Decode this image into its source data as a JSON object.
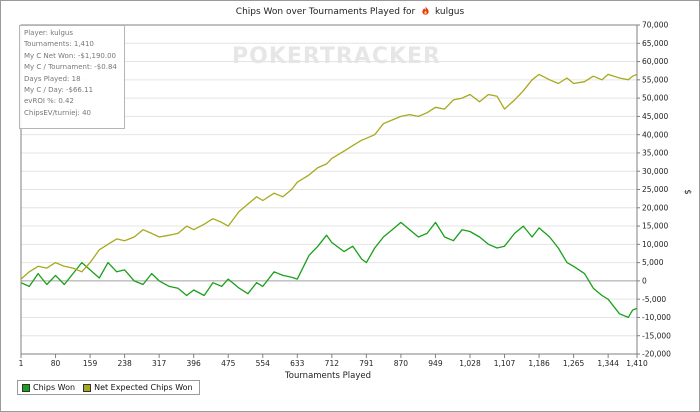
{
  "chart_data": {
    "type": "line",
    "title": "Chips Won over Tournaments Played for",
    "player_name": "kulgus",
    "xlabel": "Tournaments Played",
    "ylabel": "$",
    "xlim": [
      1,
      1410
    ],
    "ylim": [
      -20000,
      70000
    ],
    "x_ticks": [
      "1",
      "80",
      "159",
      "238",
      "317",
      "396",
      "475",
      "554",
      "633",
      "712",
      "791",
      "870",
      "949",
      "1,028",
      "1,107",
      "1,186",
      "1,265",
      "1,344",
      "1,410"
    ],
    "x_tick_values": [
      1,
      80,
      159,
      238,
      317,
      396,
      475,
      554,
      633,
      712,
      791,
      870,
      949,
      1028,
      1107,
      1186,
      1265,
      1344,
      1410
    ],
    "y_ticks": [
      "70,000",
      "65,000",
      "60,000",
      "55,000",
      "50,000",
      "45,000",
      "40,000",
      "35,000",
      "30,000",
      "25,000",
      "20,000",
      "15,000",
      "10,000",
      "5,000",
      "0",
      "-5,000",
      "-10,000",
      "-15,000",
      "-20,000"
    ],
    "y_tick_values": [
      70000,
      65000,
      60000,
      55000,
      50000,
      45000,
      40000,
      35000,
      30000,
      25000,
      20000,
      15000,
      10000,
      5000,
      0,
      -5000,
      -10000,
      -15000,
      -20000
    ],
    "legend_position": "bottom-left",
    "series": [
      {
        "name": "Chips Won",
        "color": "#1aa01a",
        "x": [
          1,
          20,
          40,
          60,
          80,
          100,
          120,
          140,
          159,
          180,
          200,
          220,
          238,
          260,
          280,
          300,
          317,
          340,
          360,
          380,
          396,
          420,
          440,
          460,
          475,
          500,
          520,
          540,
          554,
          580,
          600,
          620,
          633,
          660,
          680,
          700,
          712,
          740,
          760,
          780,
          791,
          810,
          830,
          850,
          870,
          890,
          910,
          930,
          949,
          970,
          990,
          1010,
          1028,
          1050,
          1070,
          1090,
          1107,
          1130,
          1150,
          1170,
          1186,
          1210,
          1230,
          1250,
          1265,
          1290,
          1310,
          1330,
          1344,
          1370,
          1390,
          1400,
          1410
        ],
        "y": [
          -500,
          -1500,
          2000,
          -1000,
          1500,
          -1000,
          2000,
          5000,
          3000,
          800,
          5000,
          2500,
          3000,
          0,
          -1000,
          2000,
          0,
          -1500,
          -2000,
          -4000,
          -2500,
          -4000,
          -500,
          -1500,
          500,
          -2000,
          -3500,
          -500,
          -1500,
          2500,
          1500,
          1000,
          500,
          7000,
          9500,
          12500,
          10500,
          8000,
          9500,
          6000,
          5000,
          9000,
          12000,
          14000,
          16000,
          14000,
          12000,
          13000,
          16000,
          12000,
          11000,
          14000,
          13500,
          12000,
          10000,
          9000,
          9500,
          13000,
          15000,
          12000,
          14500,
          12000,
          9000,
          5000,
          4000,
          2000,
          -2000,
          -4000,
          -5000,
          -9000,
          -10000,
          -8000,
          -7500
        ]
      },
      {
        "name": "Net Expected Chips Won",
        "color": "#a8a81e",
        "x": [
          1,
          20,
          40,
          60,
          80,
          100,
          120,
          140,
          159,
          180,
          200,
          220,
          238,
          260,
          280,
          300,
          317,
          340,
          360,
          380,
          396,
          420,
          440,
          460,
          475,
          500,
          520,
          540,
          554,
          580,
          600,
          620,
          633,
          660,
          680,
          700,
          712,
          740,
          760,
          780,
          791,
          810,
          830,
          850,
          870,
          890,
          910,
          930,
          949,
          970,
          990,
          1010,
          1028,
          1050,
          1070,
          1090,
          1107,
          1130,
          1150,
          1170,
          1186,
          1210,
          1230,
          1250,
          1265,
          1290,
          1310,
          1330,
          1344,
          1370,
          1390,
          1400,
          1410
        ],
        "y": [
          500,
          2500,
          4000,
          3500,
          5000,
          4000,
          3500,
          2500,
          5000,
          8500,
          10000,
          11500,
          11000,
          12000,
          14000,
          13000,
          12000,
          12500,
          13000,
          15000,
          14000,
          15500,
          17000,
          16000,
          15000,
          19000,
          21000,
          23000,
          22000,
          24000,
          23000,
          25000,
          27000,
          29000,
          31000,
          32000,
          33500,
          35500,
          37000,
          38500,
          39000,
          40000,
          43000,
          44000,
          45000,
          45500,
          45000,
          46000,
          47500,
          47000,
          49500,
          50000,
          51000,
          49000,
          51000,
          50500,
          47000,
          49500,
          52000,
          55000,
          56500,
          55000,
          54000,
          55500,
          54000,
          54500,
          56000,
          55000,
          56500,
          55500,
          55000,
          56000,
          56500
        ]
      }
    ]
  },
  "stats_box": [
    "Player: kulgus",
    "Tournaments: 1,410",
    "My C Net Won: -$1,190.00",
    "My C / Tournament: -$0.84",
    "Days Played: 18",
    "My C / Day: -$66.11",
    "evROI %: 0.42",
    "ChipsEV/turniej: 40"
  ],
  "watermark": "POKERTRACKER",
  "colors": {
    "grid": "#e4e4e4",
    "zero_line": "#a0a0a0",
    "axis": "#808080"
  }
}
